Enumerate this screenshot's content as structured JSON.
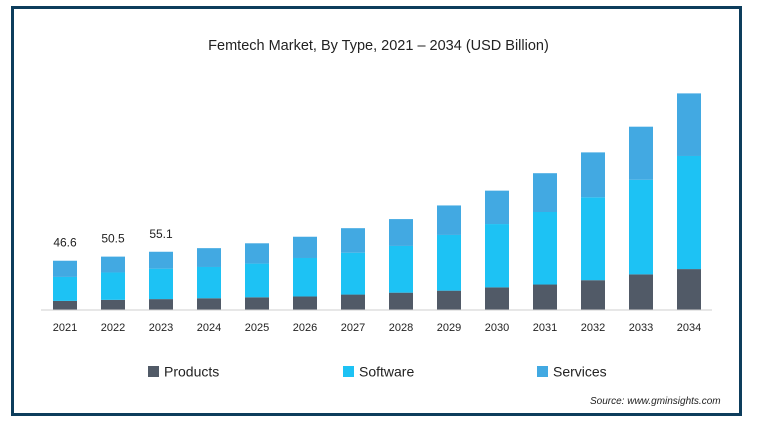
{
  "chart_data": {
    "type": "bar",
    "stacked": true,
    "title": "Femtech Market, By Type, 2021 – 2034 (USD Billion)",
    "categories": [
      "2021",
      "2022",
      "2023",
      "2024",
      "2025",
      "2026",
      "2027",
      "2028",
      "2029",
      "2030",
      "2031",
      "2032",
      "2033",
      "2034"
    ],
    "series": [
      {
        "name": "Products",
        "color": "#515a67",
        "values": [
          8.6,
          9.6,
          10.3,
          11.1,
          12.0,
          12.8,
          14.6,
          16.4,
          18.3,
          21.4,
          24.1,
          28.2,
          33.7,
          38.7
        ]
      },
      {
        "name": "Software",
        "color": "#1dc2f4",
        "values": [
          22.7,
          25.9,
          28.8,
          29.6,
          31.9,
          36.4,
          39.6,
          44.2,
          52.7,
          59.9,
          68.6,
          78.4,
          89.5,
          107.0
        ]
      },
      {
        "name": "Services",
        "color": "#42a9e2",
        "values": [
          15.3,
          15.0,
          16.0,
          17.8,
          19.2,
          20.1,
          23.2,
          25.4,
          27.9,
          31.6,
          36.7,
          42.5,
          50.2,
          59.2
        ]
      }
    ],
    "data_labels": [
      {
        "category": "2021",
        "text": "46.6"
      },
      {
        "category": "2022",
        "text": "50.5"
      },
      {
        "category": "2023",
        "text": "55.1"
      }
    ],
    "ylim": [
      0,
      210
    ],
    "grid": false,
    "legend": "bottom",
    "source": "Source: www.gminsights.com"
  }
}
